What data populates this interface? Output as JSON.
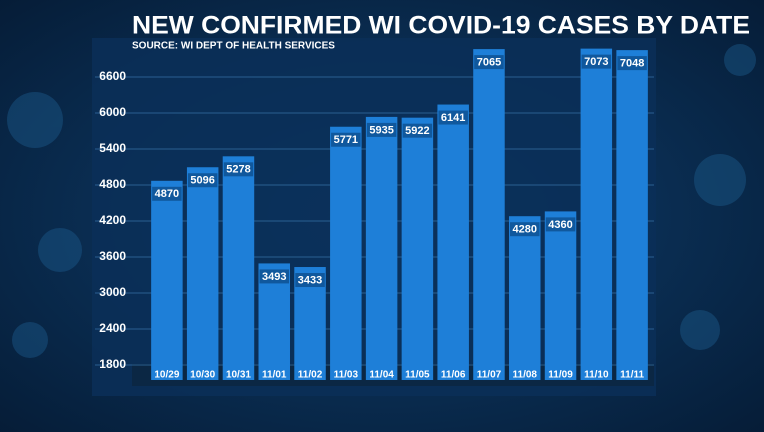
{
  "chart_data": {
    "type": "bar",
    "title": "NEW CONFIRMED WI COVID-19 CASES BY DATE",
    "subtitle": "SOURCE: WI DEPT OF HEALTH SERVICES",
    "categories": [
      "10/29",
      "10/30",
      "10/31",
      "11/01",
      "11/02",
      "11/03",
      "11/04",
      "11/05",
      "11/06",
      "11/07",
      "11/08",
      "11/09",
      "11/10",
      "11/11"
    ],
    "values": [
      4870,
      5096,
      5278,
      3493,
      3433,
      5771,
      5935,
      5922,
      6141,
      7065,
      4280,
      4360,
      7073,
      7048
    ],
    "color": "#1e7fd8",
    "ylim": [
      1550,
      7200
    ],
    "yticks": [
      1800,
      2400,
      3000,
      3600,
      4200,
      4800,
      5400,
      6000,
      6600
    ],
    "grid": true
  }
}
